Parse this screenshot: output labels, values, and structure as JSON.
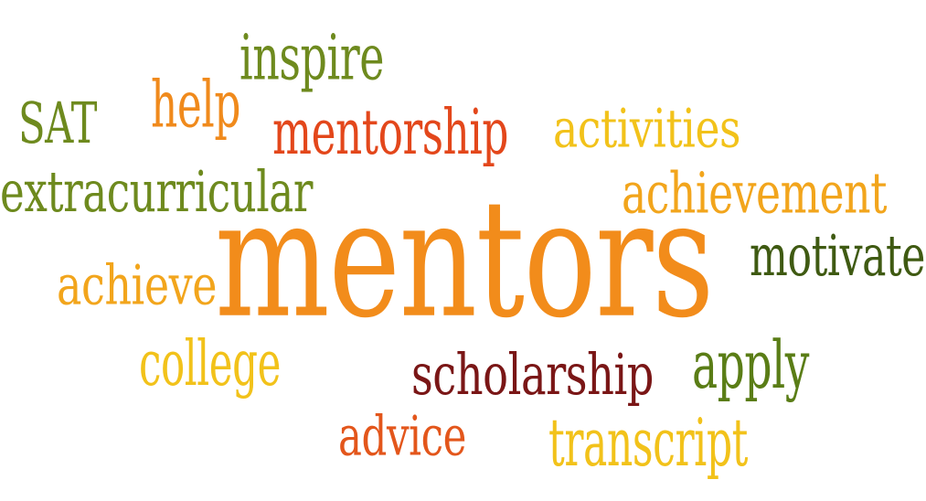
{
  "colors": {
    "background": "#ffffff",
    "olive_green": "#6e8a1e",
    "dark_green": "#3f5a12",
    "orange": "#f08a1c",
    "red_orange": "#e3471b",
    "dark_red": "#7a1616",
    "yellow": "#f2c21a"
  },
  "words": [
    {
      "id": "word-inspire",
      "text": "inspire",
      "color": "#6e8a1e"
    },
    {
      "id": "word-help",
      "text": "help",
      "color": "#f08a1c"
    },
    {
      "id": "word-sat",
      "text": "SAT",
      "color": "#6e8a1e"
    },
    {
      "id": "word-mentorship",
      "text": "mentorship",
      "color": "#e3471b"
    },
    {
      "id": "word-activities",
      "text": "activities",
      "color": "#f2c21a"
    },
    {
      "id": "word-extracurricular",
      "text": "extracurricular",
      "color": "#6e8a1e"
    },
    {
      "id": "word-achievement",
      "text": "achievement",
      "color": "#f2a51c"
    },
    {
      "id": "word-mentors",
      "text": "mentors",
      "color": "#f28c1b"
    },
    {
      "id": "word-motivate",
      "text": "motivate",
      "color": "#3f5a12"
    },
    {
      "id": "word-achieve",
      "text": "achieve",
      "color": "#f2a51c"
    },
    {
      "id": "word-college",
      "text": "college",
      "color": "#f2c21a"
    },
    {
      "id": "word-scholarship",
      "text": "scholarship",
      "color": "#7a1616"
    },
    {
      "id": "word-apply",
      "text": "apply",
      "color": "#5a7d16"
    },
    {
      "id": "word-advice",
      "text": "advice",
      "color": "#e3561b"
    },
    {
      "id": "word-transcript",
      "text": "transcript",
      "color": "#f2c21a"
    }
  ]
}
